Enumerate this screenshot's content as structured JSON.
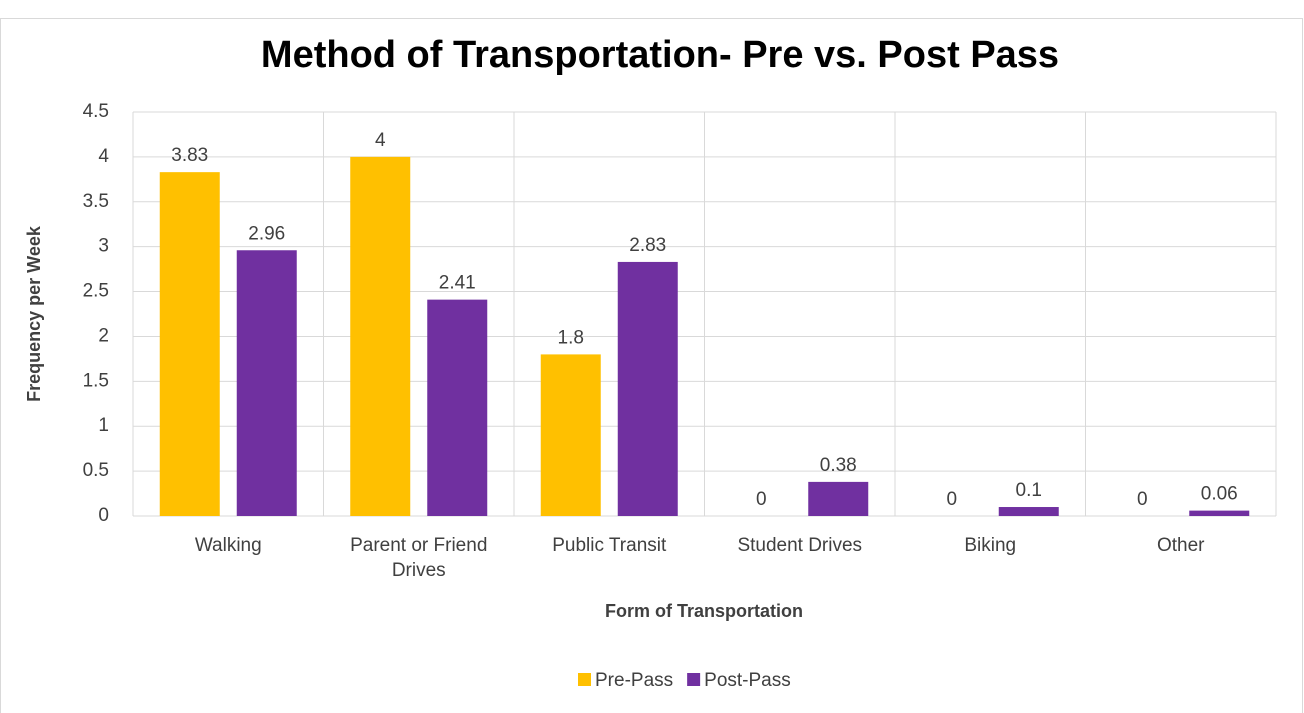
{
  "chart_data": {
    "type": "bar",
    "title": "Method of Transportation- Pre vs. Post Pass",
    "x_label": "Form of Transportation",
    "y_label": "Frequency per Week",
    "categories": [
      "Walking",
      "Parent or Friend Drives",
      "Public Transit",
      "Student Drives",
      "Biking",
      "Other"
    ],
    "series": [
      {
        "name": "Pre-Pass",
        "color": "#FFC000",
        "values": [
          3.83,
          4,
          1.8,
          0,
          0,
          0
        ]
      },
      {
        "name": "Post-Pass",
        "color": "#7030A0",
        "values": [
          2.96,
          2.41,
          2.83,
          0.38,
          0.1,
          0.06
        ]
      }
    ],
    "ylim": [
      0,
      4.5
    ],
    "yticks": [
      0,
      0.5,
      1,
      1.5,
      2,
      2.5,
      3,
      3.5,
      4,
      4.5
    ],
    "grid": true,
    "legend": "bottom"
  }
}
